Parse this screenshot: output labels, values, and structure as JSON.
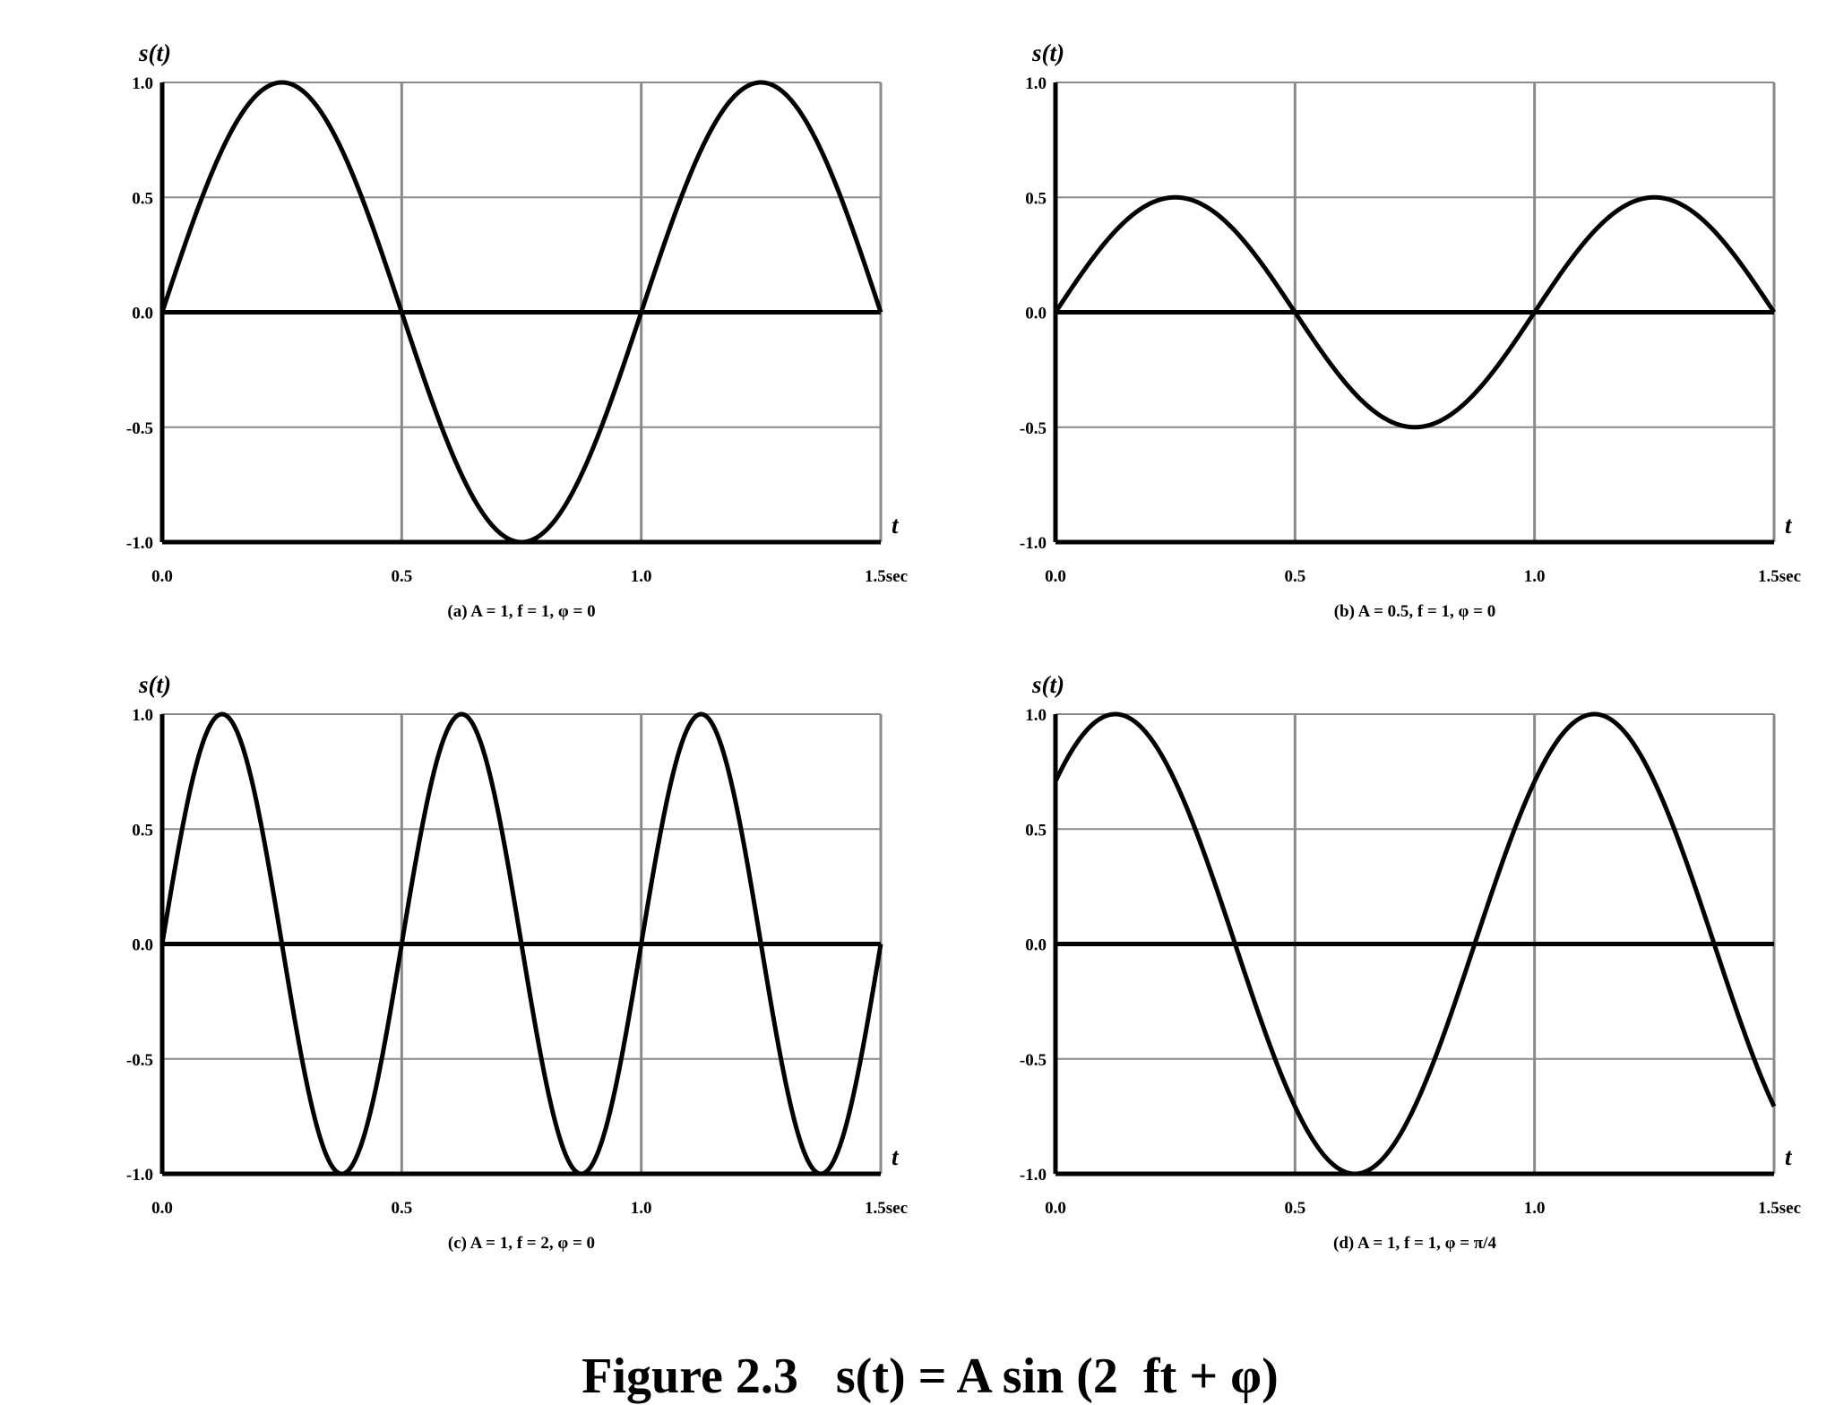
{
  "figure": {
    "label": "Figure 2.3",
    "formula": "s(t) = A sin (2  ft + φ)"
  },
  "chart_data": [
    {
      "type": "line",
      "ylabel": "s(t)",
      "xlabel": "t",
      "xlim": [
        0,
        1.5
      ],
      "ylim": [
        -1,
        1
      ],
      "x_ticks": [
        "0.0",
        "0.5",
        "1.0",
        "1.5sec"
      ],
      "y_ticks": [
        "1.0",
        "0.5",
        "0.0",
        "-0.5",
        "-1.0"
      ],
      "caption": "(a) A = 1, f = 1, φ = 0",
      "params": {
        "A": 1,
        "f": 1,
        "phi": 0
      },
      "grid": true,
      "series": [
        {
          "x": [
            0,
            0.125,
            0.25,
            0.375,
            0.5,
            0.625,
            0.75,
            0.875,
            1.0,
            1.125,
            1.25,
            1.375,
            1.5
          ],
          "y": [
            0,
            0.707,
            1,
            0.707,
            0,
            -0.707,
            -1,
            -0.707,
            0,
            0.707,
            1,
            0.707,
            0
          ]
        }
      ]
    },
    {
      "type": "line",
      "ylabel": "s(t)",
      "xlabel": "t",
      "xlim": [
        0,
        1.5
      ],
      "ylim": [
        -1,
        1
      ],
      "x_ticks": [
        "0.0",
        "0.5",
        "1.0",
        "1.5sec"
      ],
      "y_ticks": [
        "1.0",
        "0.5",
        "0.0",
        "-0.5",
        "-1.0"
      ],
      "caption": "(b) A = 0.5, f = 1, φ = 0",
      "params": {
        "A": 0.5,
        "f": 1,
        "phi": 0
      },
      "grid": true,
      "series": [
        {
          "x": [
            0,
            0.125,
            0.25,
            0.375,
            0.5,
            0.625,
            0.75,
            0.875,
            1.0,
            1.125,
            1.25,
            1.375,
            1.5
          ],
          "y": [
            0,
            0.354,
            0.5,
            0.354,
            0,
            -0.354,
            -0.5,
            -0.354,
            0,
            0.354,
            0.5,
            0.354,
            0
          ]
        }
      ]
    },
    {
      "type": "line",
      "ylabel": "s(t)",
      "xlabel": "t",
      "xlim": [
        0,
        1.5
      ],
      "ylim": [
        -1,
        1
      ],
      "x_ticks": [
        "0.0",
        "0.5",
        "1.0",
        "1.5sec"
      ],
      "y_ticks": [
        "1.0",
        "0.5",
        "0.0",
        "-0.5",
        "-1.0"
      ],
      "caption": "(c) A = 1, f = 2, φ = 0",
      "params": {
        "A": 1,
        "f": 2,
        "phi": 0
      },
      "grid": true,
      "series": [
        {
          "x": [
            0,
            0.125,
            0.25,
            0.375,
            0.5,
            0.625,
            0.75,
            0.875,
            1.0,
            1.125,
            1.25,
            1.375,
            1.5
          ],
          "y": [
            0,
            1,
            0,
            -1,
            0,
            1,
            0,
            -1,
            0,
            1,
            0,
            -1,
            0
          ]
        }
      ]
    },
    {
      "type": "line",
      "ylabel": "s(t)",
      "xlabel": "t",
      "xlim": [
        0,
        1.5
      ],
      "ylim": [
        -1,
        1
      ],
      "x_ticks": [
        "0.0",
        "0.5",
        "1.0",
        "1.5sec"
      ],
      "y_ticks": [
        "1.0",
        "0.5",
        "0.0",
        "-0.5",
        "-1.0"
      ],
      "caption": "(d) A = 1, f = 1, φ = π/4",
      "params": {
        "A": 1,
        "f": 1,
        "phi": 0.7854
      },
      "grid": true,
      "series": [
        {
          "x": [
            0,
            0.125,
            0.25,
            0.375,
            0.5,
            0.625,
            0.75,
            0.875,
            1.0,
            1.125,
            1.25,
            1.375,
            1.5
          ],
          "y": [
            0.707,
            1,
            0.707,
            0,
            -0.707,
            -1,
            -0.707,
            0,
            0.707,
            1,
            0.707,
            0,
            -0.707
          ]
        }
      ]
    }
  ]
}
